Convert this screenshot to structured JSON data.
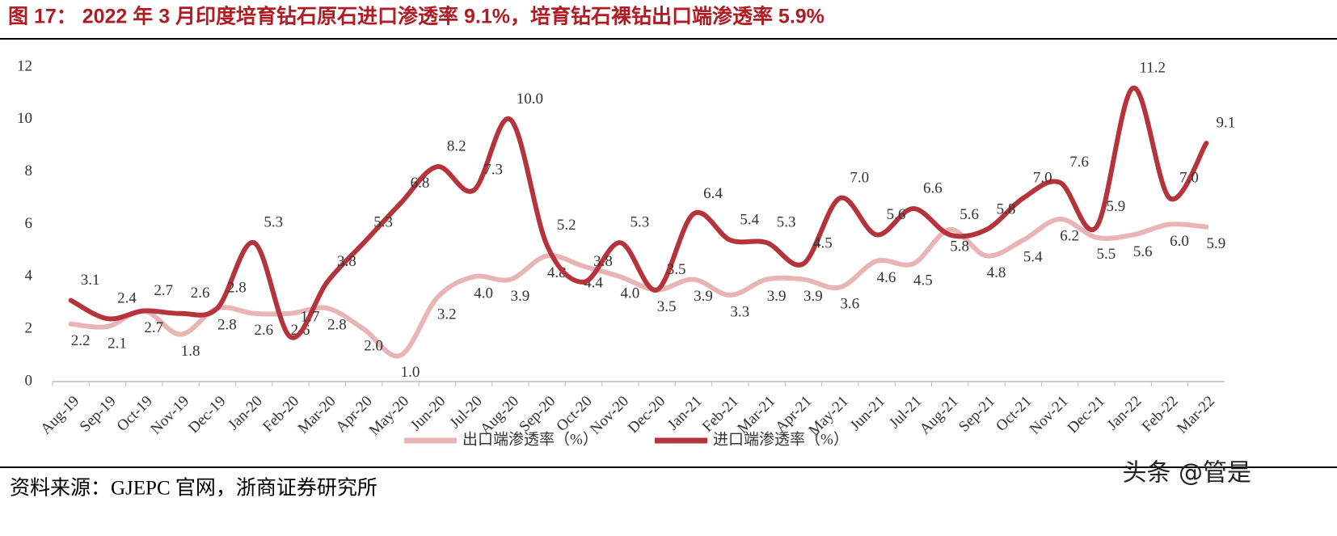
{
  "header": {
    "title": "图 17： 2022 年 3 月印度培育钻石原石进口渗透率 9.1%，培育钻石裸钻出口端渗透率 5.9%"
  },
  "chart_data": {
    "type": "line",
    "categories": [
      "Aug-19",
      "Sep-19",
      "Oct-19",
      "Nov-19",
      "Dec-19",
      "Jan-20",
      "Feb-20",
      "Mar-20",
      "Apr-20",
      "May-20",
      "Jun-20",
      "Jul-20",
      "Aug-20",
      "Sep-20",
      "Oct-20",
      "Nov-20",
      "Dec-20",
      "Jan-21",
      "Feb-21",
      "Mar-21",
      "Apr-21",
      "May-21",
      "Jun-21",
      "Jul-21",
      "Aug-21",
      "Sep-21",
      "Oct-21",
      "Nov-21",
      "Dec-21",
      "Jan-22",
      "Feb-22",
      "Mar-22"
    ],
    "series": [
      {
        "name": "出口端渗透率（%）",
        "color": "#e8b4b4",
        "values": [
          2.2,
          2.1,
          2.7,
          1.8,
          2.8,
          2.6,
          2.6,
          2.8,
          2.0,
          1.0,
          3.2,
          4.0,
          3.9,
          4.8,
          4.4,
          4.0,
          3.5,
          3.9,
          3.3,
          3.9,
          3.9,
          3.6,
          4.6,
          4.5,
          5.8,
          4.8,
          5.4,
          6.2,
          5.5,
          5.6,
          6.0,
          5.9
        ],
        "value_labels": [
          "2.2",
          "2.1",
          "2.7",
          "1.8",
          "2.8",
          "2.6",
          "2.6",
          "2.8",
          "2.0",
          "1.0",
          "3.2",
          "4.0",
          "3.9",
          "4.8",
          "4.4",
          "4.0",
          "3.5",
          "3.9",
          "3.3",
          "3.9",
          "3.9",
          "3.6",
          "4.6",
          "4.5",
          "5.8",
          "4.8",
          "5.4",
          "6.2",
          "5.5",
          "5.6",
          "6.0",
          "5.9"
        ]
      },
      {
        "name": "进口端渗透率（%）",
        "color": "#b5343c",
        "values": [
          3.1,
          2.4,
          2.7,
          2.6,
          2.8,
          5.3,
          1.7,
          3.8,
          5.3,
          6.8,
          8.2,
          7.3,
          10.0,
          5.2,
          3.8,
          5.3,
          3.5,
          6.4,
          5.4,
          5.3,
          4.5,
          7.0,
          5.6,
          6.6,
          5.6,
          5.8,
          7.0,
          7.6,
          5.9,
          11.2,
          7.0,
          9.1
        ],
        "value_labels": [
          "3.1",
          "2.4",
          "2.7",
          "2.6",
          "2.8",
          "5.3",
          "1.7",
          "3.8",
          "5.3",
          "6.8",
          "8.2",
          "7.3",
          "10.0",
          "5.2",
          "3.8",
          "5.3",
          "3.5",
          "6.4",
          "5.4",
          "5.3",
          "4.5",
          "7.0",
          "5.6",
          "6.6",
          "5.6",
          "5.8",
          "7.0",
          "7.6",
          "5.9",
          "11.2",
          "7.0",
          "9.1"
        ]
      }
    ],
    "ylim": [
      0,
      12
    ],
    "yticks": [
      0,
      2,
      4,
      6,
      8,
      10,
      12
    ],
    "grid": false,
    "legend": "bottom"
  },
  "footer": {
    "source": "资料来源：GJEPC 官网，浙商证券研究所",
    "watermark": "头条 @管是"
  }
}
